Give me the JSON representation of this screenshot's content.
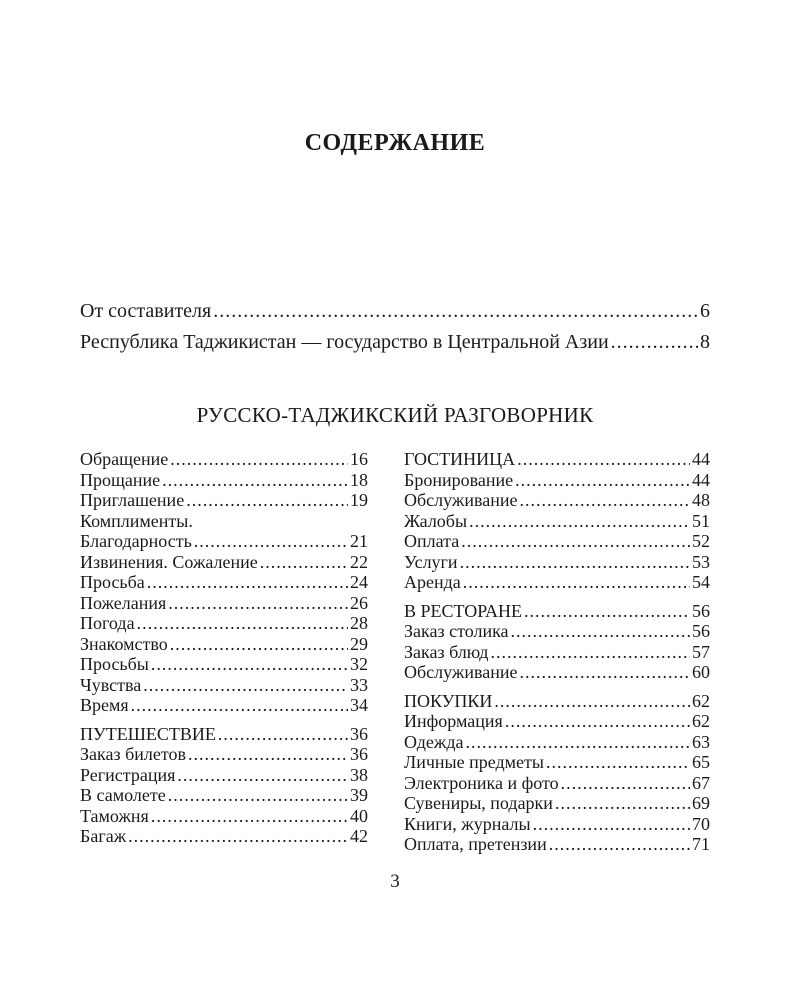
{
  "document": {
    "title": "СОДЕРЖАНИЕ",
    "section_heading": "РУССКО-ТАДЖИКСКИЙ РАЗГОВОРНИК",
    "page_number": "3"
  },
  "colors": {
    "background": "#ffffff",
    "text": "#1a1a1a"
  },
  "preamble": [
    {
      "label": "От составителя",
      "page": "6"
    },
    {
      "label": "Республика Таджикистан — государство в Центральной Азии",
      "page": "8"
    }
  ],
  "toc": {
    "left": [
      {
        "label": "Обращение",
        "page": "16"
      },
      {
        "label": "Прощание",
        "page": "18"
      },
      {
        "label": "Приглашение",
        "page": "19"
      },
      {
        "label": "Комплименты.",
        "page": ""
      },
      {
        "label": "Благодарность",
        "page": "21"
      },
      {
        "label": "Извинения. Сожаление",
        "page": "22"
      },
      {
        "label": "Просьба",
        "page": "24"
      },
      {
        "label": "Пожелания",
        "page": "26"
      },
      {
        "label": "Погода",
        "page": "28"
      },
      {
        "label": "Знакомство",
        "page": "29"
      },
      {
        "label": "Просьбы",
        "page": "32"
      },
      {
        "label": "Чувства",
        "page": "33"
      },
      {
        "label": "Время",
        "page": "34"
      },
      {
        "label": "ПУТЕШЕСТВИЕ",
        "page": "36",
        "header": true
      },
      {
        "label": "Заказ билетов",
        "page": "36"
      },
      {
        "label": "Регистрация",
        "page": "38"
      },
      {
        "label": "В самолете",
        "page": "39"
      },
      {
        "label": "Таможня",
        "page": "40"
      },
      {
        "label": "Багаж",
        "page": "42"
      }
    ],
    "right": [
      {
        "label": "ГОСТИНИЦА",
        "page": "44",
        "header": true
      },
      {
        "label": "Бронирование",
        "page": "44"
      },
      {
        "label": "Обслуживание",
        "page": "48"
      },
      {
        "label": "Жалобы",
        "page": "51"
      },
      {
        "label": "Оплата",
        "page": "52"
      },
      {
        "label": "Услуги",
        "page": "53"
      },
      {
        "label": "Аренда",
        "page": "54"
      },
      {
        "label": "В РЕСТОРАНЕ",
        "page": "56",
        "header": true
      },
      {
        "label": "Заказ столика",
        "page": "56"
      },
      {
        "label": "Заказ блюд",
        "page": "57"
      },
      {
        "label": "Обслуживание",
        "page": "60"
      },
      {
        "label": "ПОКУПКИ",
        "page": "62",
        "header": true
      },
      {
        "label": "Информация",
        "page": "62"
      },
      {
        "label": "Одежда",
        "page": "63"
      },
      {
        "label": "Личные предметы",
        "page": "65"
      },
      {
        "label": "Электроника и фото",
        "page": "67"
      },
      {
        "label": "Сувениры, подарки",
        "page": "69"
      },
      {
        "label": "Книги, журналы",
        "page": "70"
      },
      {
        "label": "Оплата, претензии",
        "page": "71"
      }
    ]
  }
}
